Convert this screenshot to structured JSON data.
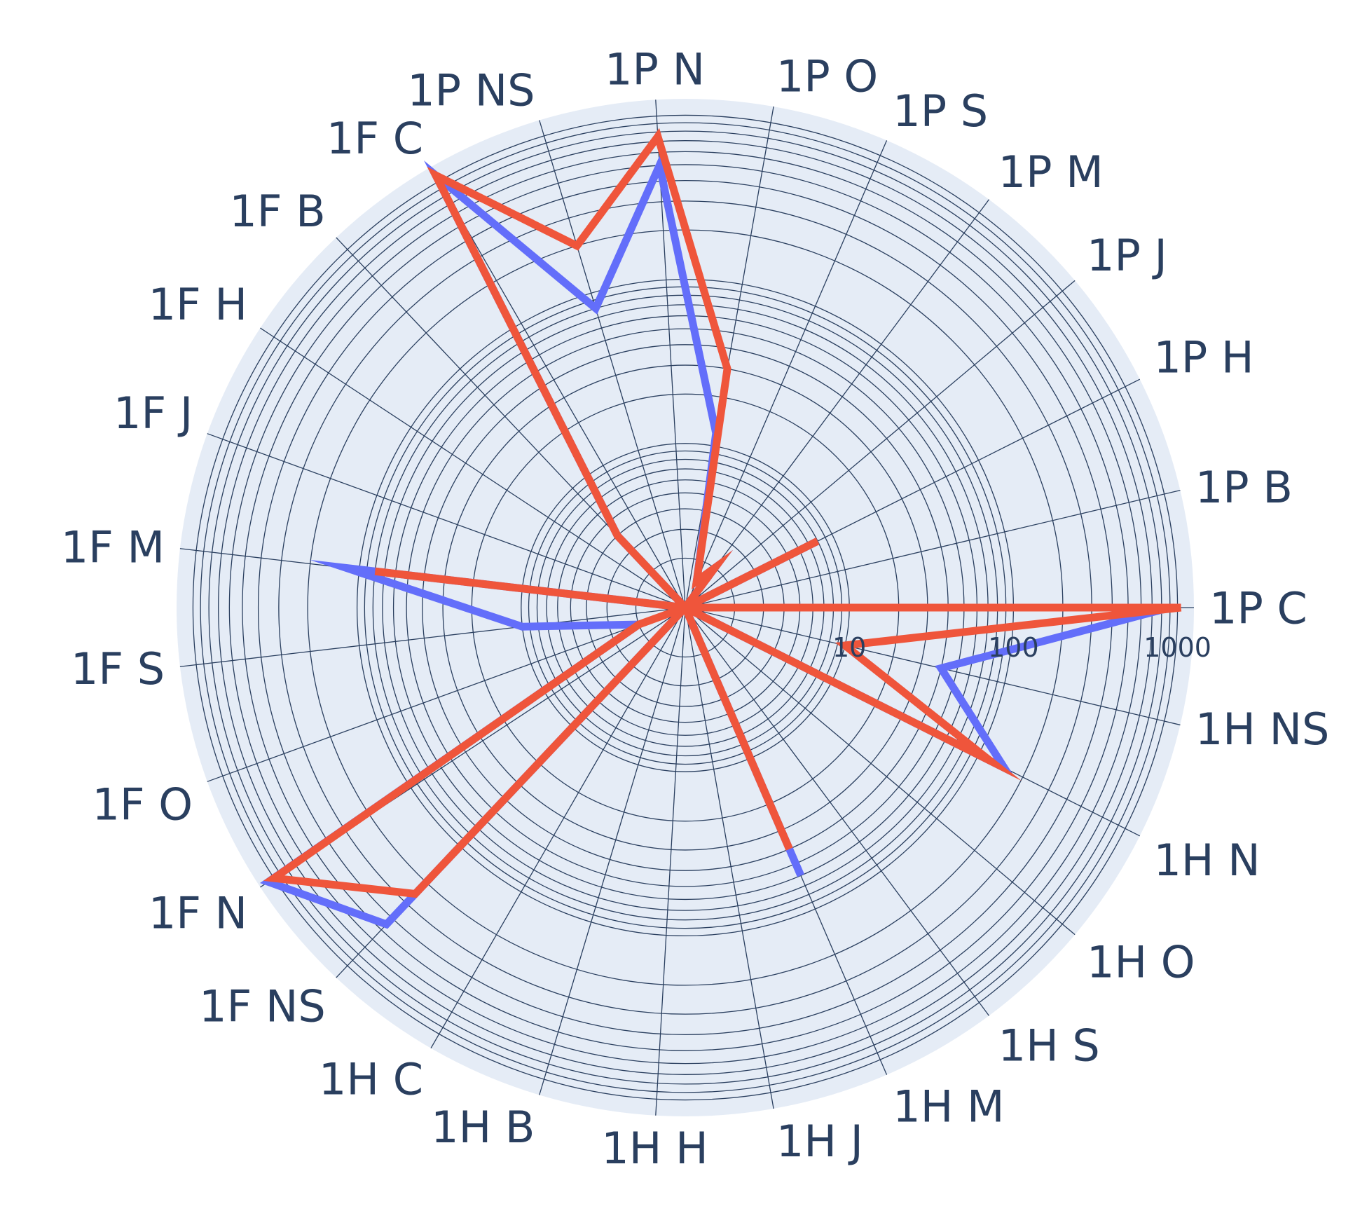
{
  "chart_data": {
    "type": "radar",
    "title": "",
    "categories": [
      "1P C",
      "1P B",
      "1P H",
      "1P J",
      "1P M",
      "1P S",
      "1P O",
      "1P N",
      "1P NS",
      "1F C",
      "1F B",
      "1F H",
      "1F J",
      "1F M",
      "1F S",
      "1F O",
      "1F N",
      "1F NS",
      "1H C",
      "1H B",
      "1H H",
      "1H J",
      "1H M",
      "1H S",
      "1H O",
      "1H N",
      "1H NS"
    ],
    "series": [
      {
        "color": "#636efa",
        "values": [
          900,
          1,
          8,
          1,
          2,
          1.5,
          12,
          500,
          80,
          1100,
          4,
          1,
          1,
          120,
          10,
          2,
          1100,
          450,
          1,
          1,
          1,
          1,
          60,
          1,
          1,
          150,
          40
        ]
      },
      {
        "color": "#ef553b",
        "values": [
          1050,
          1,
          8,
          1,
          2,
          1.5,
          30,
          750,
          200,
          1100,
          4,
          1,
          1,
          80,
          1,
          2,
          1000,
          250,
          1,
          1,
          1,
          1,
          40,
          1,
          1,
          120,
          10
        ]
      }
    ],
    "radial_axis": {
      "type": "log",
      "range": [
        0,
        3.1
      ],
      "tick_labels": [
        "10",
        "100",
        "1000"
      ]
    },
    "angular_axis": {
      "direction": "counterclockwise",
      "rotation_deg": 0
    },
    "colors": {
      "polar_background": "#e5ecf6",
      "grid": "#2a3f5f",
      "text": "#2a3f5f"
    }
  }
}
